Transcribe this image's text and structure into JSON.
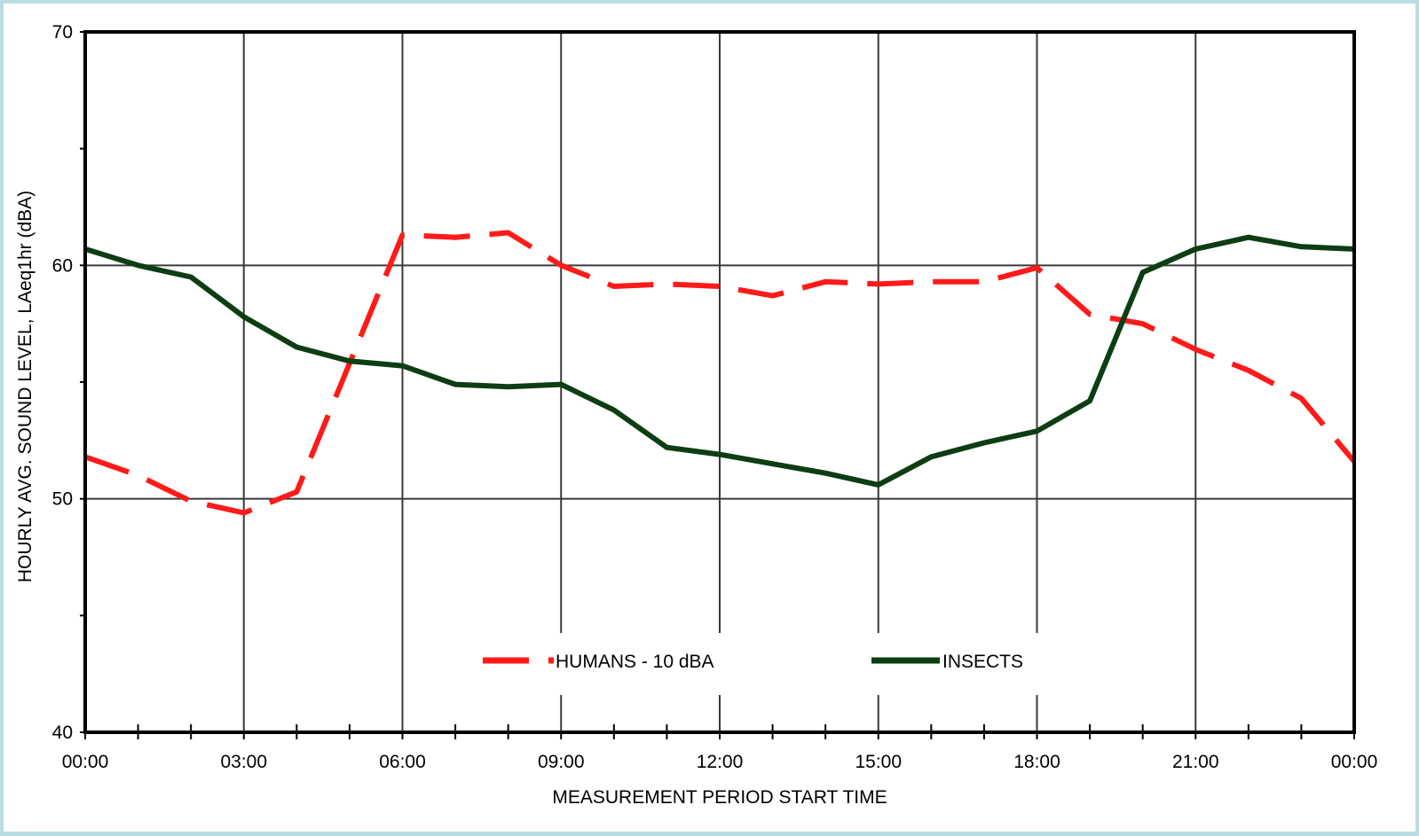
{
  "chart_data": {
    "type": "line",
    "title": "",
    "xlabel": "MEASUREMENT PERIOD START TIME",
    "ylabel": "HOURLY AVG. SOUND LEVEL, LAeq1hr  (dBA)",
    "xlim": [
      0,
      24
    ],
    "ylim": [
      40,
      70
    ],
    "x_ticks": [
      0,
      3,
      6,
      9,
      12,
      15,
      18,
      21,
      24
    ],
    "x_tick_labels": [
      "00:00",
      "03:00",
      "06:00",
      "09:00",
      "12:00",
      "15:00",
      "18:00",
      "21:00",
      "00:00"
    ],
    "y_ticks": [
      40,
      50,
      60,
      70
    ],
    "y_tick_labels": [
      "40",
      "50",
      "60",
      "70"
    ],
    "y_minor_ticks": [
      45,
      55,
      65
    ],
    "x_minor_step": 1,
    "grid": true,
    "legend_position": "bottom-center",
    "series": [
      {
        "name": "HUMANS - 10 dBA",
        "color": "#ff1a1a",
        "style": "dashed",
        "x": [
          0,
          1,
          2,
          3,
          4,
          5,
          6,
          7,
          8,
          9,
          10,
          11,
          12,
          13,
          14,
          15,
          16,
          17,
          18,
          19,
          20,
          21,
          22,
          23,
          24
        ],
        "values": [
          51.8,
          51.0,
          49.9,
          49.4,
          50.3,
          55.8,
          61.3,
          61.2,
          61.4,
          60.0,
          59.1,
          59.2,
          59.1,
          58.7,
          59.3,
          59.2,
          59.3,
          59.3,
          59.9,
          57.9,
          57.5,
          56.4,
          55.5,
          54.3,
          51.6
        ]
      },
      {
        "name": "INSECTS",
        "color": "#0d3d12",
        "style": "solid",
        "x": [
          0,
          1,
          2,
          3,
          4,
          5,
          6,
          7,
          8,
          9,
          10,
          11,
          12,
          13,
          14,
          15,
          16,
          17,
          18,
          19,
          20,
          21,
          22,
          23,
          24
        ],
        "values": [
          60.7,
          60.0,
          59.5,
          57.8,
          56.5,
          55.9,
          55.7,
          54.9,
          54.8,
          54.9,
          53.8,
          52.2,
          51.9,
          51.5,
          51.1,
          50.6,
          51.8,
          52.4,
          52.9,
          54.2,
          59.7,
          60.7,
          61.2,
          60.8,
          60.7
        ]
      }
    ]
  }
}
